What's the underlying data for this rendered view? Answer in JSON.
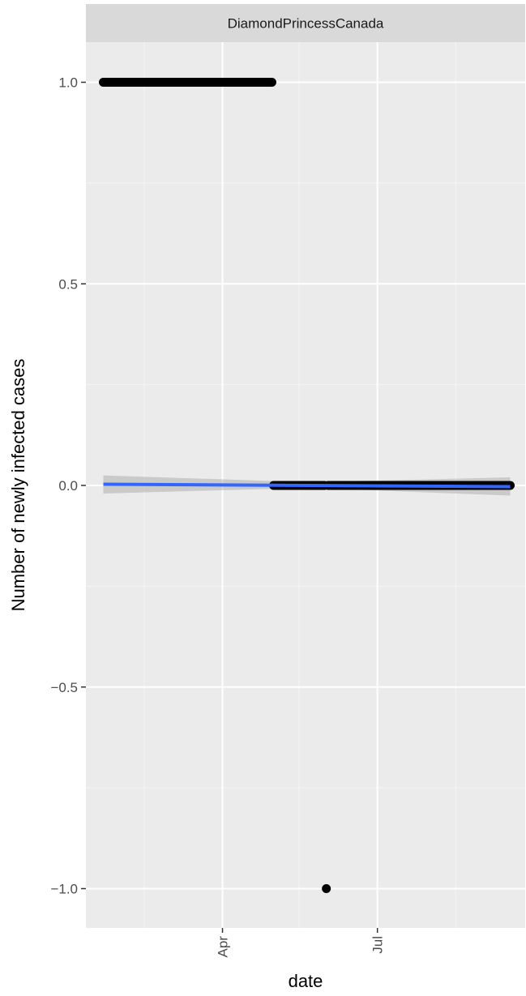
{
  "chart_data": {
    "type": "scatter",
    "facet_label": "DiamondPrincessCanada",
    "xlabel": "date",
    "ylabel": "Number of newly infected cases",
    "x_type": "date",
    "xlim": [
      "2020-01-22",
      "2020-09-17"
    ],
    "ylim": [
      -1.0,
      1.0
    ],
    "y_ticks": [
      {
        "value": -1.0,
        "label": "−1.0"
      },
      {
        "value": -0.5,
        "label": "−0.5"
      },
      {
        "value": 0.0,
        "label": "0.0"
      },
      {
        "value": 0.5,
        "label": "0.5"
      },
      {
        "value": 1.0,
        "label": "1.0"
      }
    ],
    "y_minor_ticks": [
      -0.75,
      -0.25,
      0.25,
      0.75
    ],
    "x_ticks": [
      {
        "value": "2020-04-01",
        "label": "Apr"
      },
      {
        "value": "2020-07-01",
        "label": "Jul"
      }
    ],
    "x_minor_ticks": [
      "2020-02-15",
      "2020-05-16",
      "2020-08-16"
    ],
    "series": [
      {
        "kind": "points",
        "points": [
          {
            "x": "2020-01-22",
            "y": 1.0,
            "run_to": "2020-04-29"
          },
          {
            "x": "2020-04-30",
            "y": 1.0
          },
          {
            "x": "2020-05-01",
            "y": 0.0,
            "run_to": "2020-05-31"
          },
          {
            "x": "2020-06-01",
            "y": -1.0
          },
          {
            "x": "2020-06-02",
            "y": 0.0,
            "run_to": "2020-09-17"
          }
        ]
      },
      {
        "kind": "smooth",
        "color": "#3366ff",
        "line": [
          {
            "x": "2020-01-22",
            "y": 0.003
          },
          {
            "x": "2020-09-17",
            "y": -0.003
          }
        ],
        "band": {
          "x": [
            "2020-01-22",
            "2020-05-21",
            "2020-09-17"
          ],
          "upper": [
            0.025,
            0.008,
            0.02
          ],
          "lower": [
            -0.02,
            -0.006,
            -0.025
          ]
        }
      }
    ],
    "panel_background": "#ebebeb",
    "strip_background": "#d9d9d9",
    "grid": true
  }
}
